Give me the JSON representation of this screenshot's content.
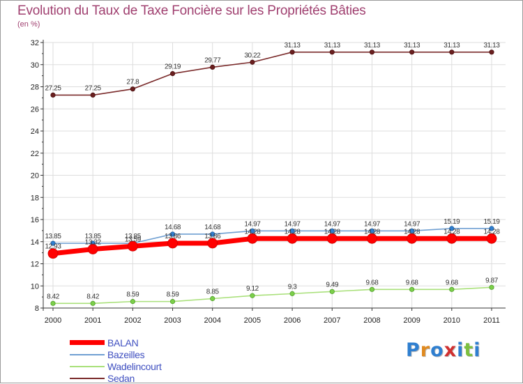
{
  "title": "Evolution du Taux de Taxe Foncière sur les Propriétés Bâties",
  "unit": "(en %)",
  "logo": {
    "text": "Proxiti",
    "letter_colors": [
      "#2f7fd0",
      "#e08a20",
      "#2f7fd0",
      "#d03030",
      "#2f7fd0",
      "#7cbf3f",
      "#2f7fd0"
    ]
  },
  "chart_data": {
    "type": "line",
    "title": "Evolution du Taux de Taxe Foncière sur les Propriétés Bâties",
    "ylabel": "(en %)",
    "xlabel": "",
    "x": [
      "2000",
      "2001",
      "2002",
      "2003",
      "2004",
      "2005",
      "2006",
      "2007",
      "2008",
      "2009",
      "2010",
      "2011"
    ],
    "yticks": [
      "8",
      "10",
      "12",
      "14",
      "16",
      "18",
      "20",
      "22",
      "24",
      "26",
      "28",
      "30",
      "32"
    ],
    "ylim": [
      8,
      32
    ],
    "legend_position": "bottom-left",
    "series": [
      {
        "name": "BALAN",
        "color": "#ff0000",
        "values": [
          12.93,
          13.32,
          13.59,
          13.86,
          13.86,
          14.28,
          14.28,
          14.28,
          14.28,
          14.28,
          14.28,
          14.28
        ],
        "labels": [
          "12.93",
          "13.32",
          "13.59",
          "13.86",
          "13.86",
          "14.28",
          "14.28",
          "14.28",
          "14.28",
          "14.28",
          "14.28",
          "14.28"
        ]
      },
      {
        "name": "Bazeilles",
        "color": "#6f9fd2",
        "values": [
          13.85,
          13.85,
          13.85,
          14.68,
          14.68,
          14.97,
          14.97,
          14.97,
          14.97,
          14.97,
          15.19,
          15.19
        ],
        "labels": [
          "13.85",
          "13.85",
          "13.85",
          "14.68",
          "14.68",
          "14.97",
          "14.97",
          "14.97",
          "14.97",
          "14.97",
          "15.19",
          "15.19"
        ]
      },
      {
        "name": "Wadelincourt",
        "color": "#a9e07a",
        "values": [
          8.42,
          8.42,
          8.59,
          8.59,
          8.85,
          9.12,
          9.3,
          9.49,
          9.68,
          9.68,
          9.68,
          9.87
        ],
        "labels": [
          "8.42",
          "8.42",
          "8.59",
          "8.59",
          "8.85",
          "9.12",
          "9.3",
          "9.49",
          "9.68",
          "9.68",
          "9.68",
          "9.87"
        ]
      },
      {
        "name": "Sedan",
        "color": "#7a2a2a",
        "values": [
          27.25,
          27.25,
          27.8,
          29.19,
          29.77,
          30.22,
          31.13,
          31.13,
          31.13,
          31.13,
          31.13,
          31.13
        ],
        "labels": [
          "27.25",
          "27.25",
          "27.8",
          "29.19",
          "29.77",
          "30.22",
          "31.13",
          "31.13",
          "31.13",
          "31.13",
          "31.13",
          "31.13"
        ]
      }
    ]
  }
}
